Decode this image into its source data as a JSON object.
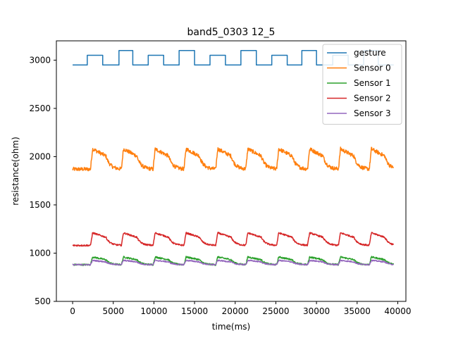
{
  "chart_data": {
    "type": "line",
    "title": "band5_0303 12_5",
    "xlabel": "time(ms)",
    "ylabel": "resistance(ohm)",
    "xlim": [
      -2000,
      41000
    ],
    "ylim": [
      500,
      3200
    ],
    "xticks": [
      0,
      5000,
      10000,
      15000,
      20000,
      25000,
      30000,
      35000,
      40000
    ],
    "yticks": [
      500,
      1000,
      1500,
      2000,
      2500,
      3000
    ],
    "legend_position": "top-right",
    "grid": false,
    "gesture_steps": [
      [
        0,
        2950
      ],
      [
        1800,
        2950
      ],
      [
        1800,
        3050
      ],
      [
        3700,
        3050
      ],
      [
        3700,
        2950
      ],
      [
        5700,
        2950
      ],
      [
        5700,
        3100
      ],
      [
        7400,
        3100
      ],
      [
        7400,
        2950
      ],
      [
        9300,
        2950
      ],
      [
        9300,
        3050
      ],
      [
        11200,
        3050
      ],
      [
        11200,
        2950
      ],
      [
        13100,
        2950
      ],
      [
        13100,
        3100
      ],
      [
        15000,
        3100
      ],
      [
        15000,
        2950
      ],
      [
        16900,
        2950
      ],
      [
        16900,
        3050
      ],
      [
        18800,
        3050
      ],
      [
        18800,
        2950
      ],
      [
        20700,
        2950
      ],
      [
        20700,
        3100
      ],
      [
        22600,
        3100
      ],
      [
        22600,
        2950
      ],
      [
        24500,
        2950
      ],
      [
        24500,
        3050
      ],
      [
        26400,
        3050
      ],
      [
        26400,
        2950
      ],
      [
        28200,
        2950
      ],
      [
        28200,
        3100
      ],
      [
        30000,
        3100
      ],
      [
        30000,
        2950
      ],
      [
        32000,
        2950
      ],
      [
        32000,
        3050
      ],
      [
        33900,
        3050
      ],
      [
        33900,
        2950
      ],
      [
        35800,
        2950
      ],
      [
        35800,
        3100
      ],
      [
        37600,
        3100
      ],
      [
        37600,
        2950
      ],
      [
        39500,
        2950
      ]
    ],
    "event_starts": [
      2200,
      6000,
      9900,
      13700,
      17600,
      21300,
      25100,
      28900,
      32700,
      36500
    ],
    "series": [
      {
        "name": "gesture",
        "color": "#1f77b4",
        "kind": "step"
      },
      {
        "name": "Sensor 0",
        "color": "#ff7f0e",
        "kind": "response",
        "base": 1870,
        "peak": 2080,
        "rise": 0.55,
        "noise": 20
      },
      {
        "name": "Sensor 1",
        "color": "#2ca02c",
        "kind": "response",
        "base": 880,
        "peak": 960,
        "rise": 0.55,
        "noise": 8
      },
      {
        "name": "Sensor 2",
        "color": "#d62728",
        "kind": "response",
        "base": 1080,
        "peak": 1210,
        "rise": 0.55,
        "noise": 8
      },
      {
        "name": "Sensor 3",
        "color": "#9467bd",
        "kind": "response",
        "base": 880,
        "peak": 925,
        "rise": 0.55,
        "noise": 6
      }
    ],
    "x_range_data": [
      0,
      39500
    ]
  }
}
